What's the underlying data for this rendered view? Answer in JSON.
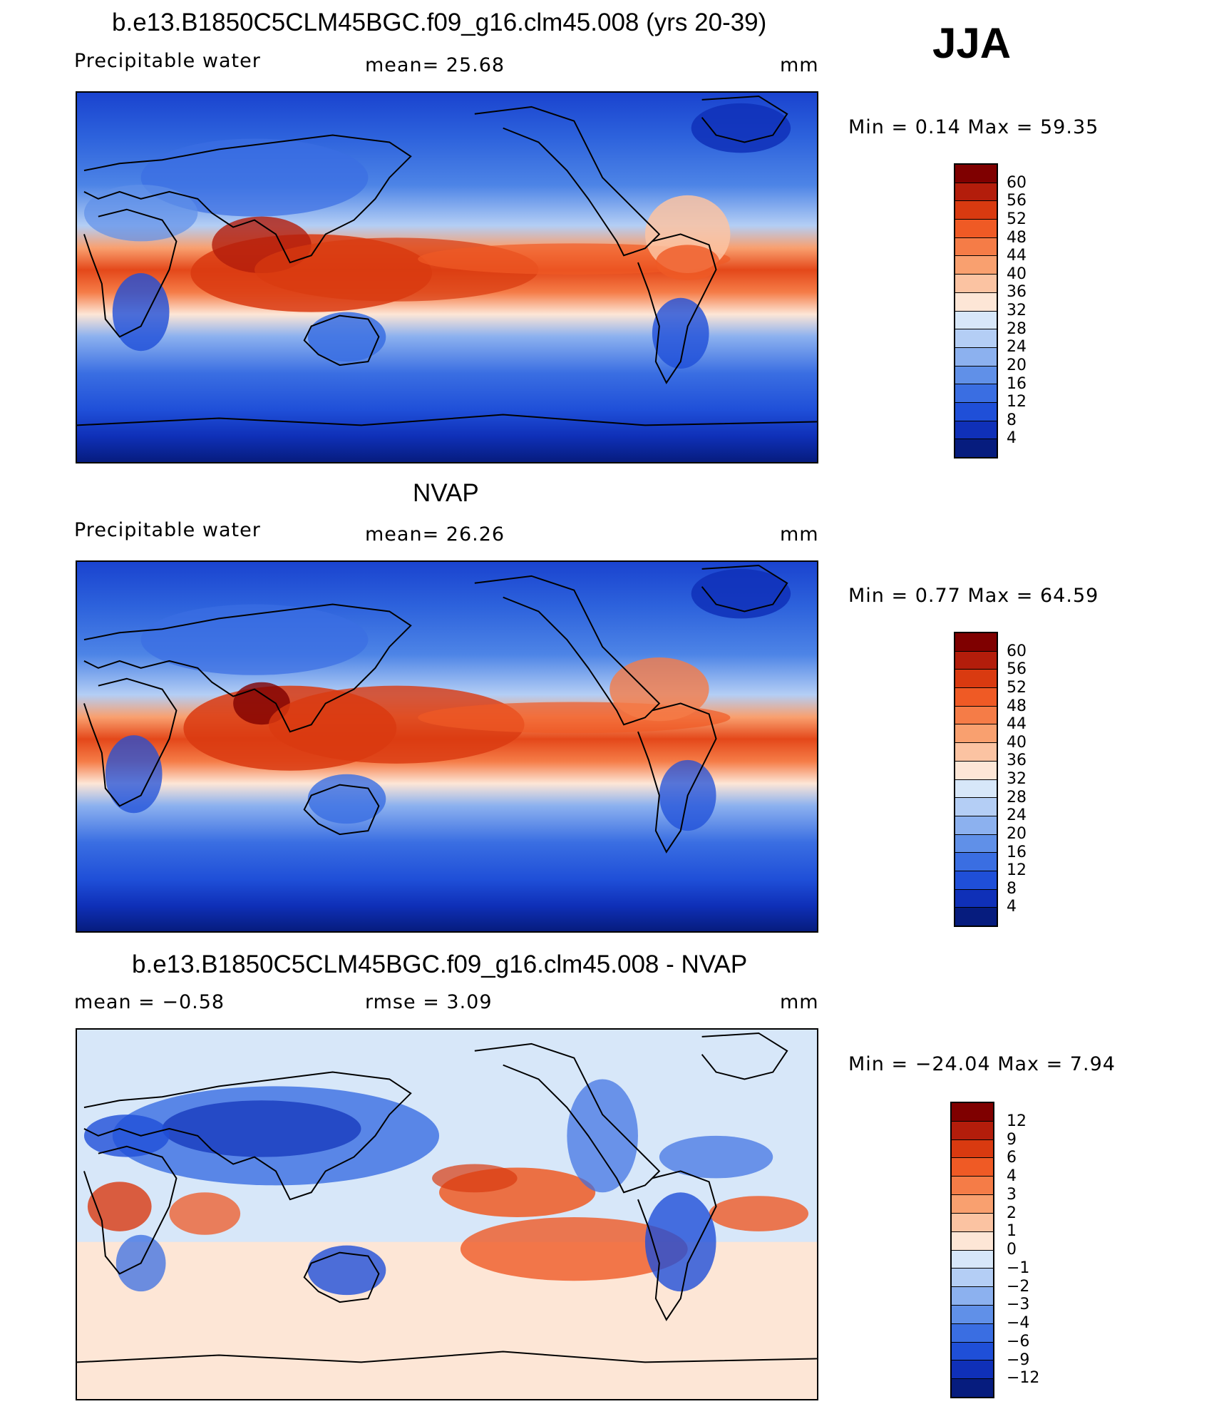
{
  "season": "JJA",
  "panels": [
    {
      "title": "b.e13.B1850C5CLM45BGC.f09_g16.clm45.008 (yrs 20-39)",
      "left_label": "Precipitable water",
      "mid_label": "mean=   25.68",
      "units": "mm",
      "minmax": "Min  =     0.14  Max  =    59.35",
      "colorbar": {
        "labels": [
          "60",
          "56",
          "52",
          "48",
          "44",
          "40",
          "36",
          "32",
          "28",
          "24",
          "20",
          "16",
          "12",
          "8",
          "4"
        ],
        "colors": [
          "#7f0000",
          "#b31d0b",
          "#d93a10",
          "#ef5a25",
          "#f57c47",
          "#f9a06f",
          "#fbc3a2",
          "#fde6d6",
          "#d7e7f9",
          "#b4cef5",
          "#8cb1ef",
          "#6090e8",
          "#3a6ee2",
          "#1f4fd8",
          "#0f30b8",
          "#061c7e"
        ]
      }
    },
    {
      "title": "NVAP",
      "left_label": "Precipitable water",
      "mid_label": "mean=   26.26",
      "units": "mm",
      "minmax": "Min  =     0.77  Max  =    64.59",
      "colorbar": {
        "labels": [
          "60",
          "56",
          "52",
          "48",
          "44",
          "40",
          "36",
          "32",
          "28",
          "24",
          "20",
          "16",
          "12",
          "8",
          "4"
        ],
        "colors": [
          "#7f0000",
          "#b31d0b",
          "#d93a10",
          "#ef5a25",
          "#f57c47",
          "#f9a06f",
          "#fbc3a2",
          "#fde6d6",
          "#d7e7f9",
          "#b4cef5",
          "#8cb1ef",
          "#6090e8",
          "#3a6ee2",
          "#1f4fd8",
          "#0f30b8",
          "#061c7e"
        ]
      }
    },
    {
      "title": "b.e13.B1850C5CLM45BGC.f09_g16.clm45.008 - NVAP",
      "left_label": "mean  =    −0.58",
      "mid_label": "rmse  =     3.09",
      "units": "mm",
      "minmax": "Min  = −24.04  Max  =      7.94",
      "colorbar": {
        "labels": [
          "12",
          "9",
          "6",
          "4",
          "3",
          "2",
          "1",
          "0",
          "−1",
          "−2",
          "−3",
          "−4",
          "−6",
          "−9",
          "−12"
        ],
        "colors": [
          "#7f0000",
          "#b31d0b",
          "#d93a10",
          "#ef5a25",
          "#f57c47",
          "#f9a06f",
          "#fbc3a2",
          "#fde6d6",
          "#d7e7f9",
          "#b4cef5",
          "#8cb1ef",
          "#6090e8",
          "#3a6ee2",
          "#1f4fd8",
          "#0f30b8",
          "#061c7e"
        ]
      }
    }
  ]
}
